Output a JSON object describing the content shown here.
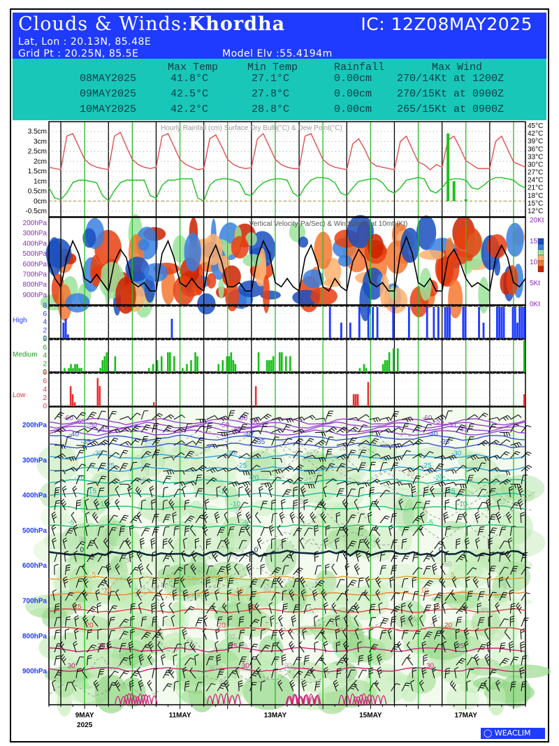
{
  "header": {
    "title_prefix": "Clouds & Winds:",
    "location": "Khordha",
    "ic": "IC: 12Z08MAY2025",
    "latlon": "Lat, Lon : 20.13N, 85.48E",
    "gridpt": "Grid Pt  : 20.25N, 85.5E",
    "model_elev": "Model Elv :55.4194m"
  },
  "summary": {
    "headers": [
      "Max Temp",
      "Min Temp",
      "Rainfall",
      "Max Wind"
    ],
    "rows": [
      {
        "date": "08MAY2025",
        "max_temp": "41.8°C",
        "min_temp": "27.1°C",
        "rainfall": "0.00cm",
        "max_wind": "270/14Kt at 1200Z"
      },
      {
        "date": "09MAY2025",
        "max_temp": "42.5°C",
        "min_temp": "27.8°C",
        "rainfall": "0.00cm",
        "max_wind": "270/15Kt at 0900Z"
      },
      {
        "date": "10MAY2025",
        "max_temp": "42.2°C",
        "min_temp": "28.8°C",
        "rainfall": "0.00cm",
        "max_wind": "265/15Kt at 0900Z"
      }
    ]
  },
  "footer": {
    "x_ticks": [
      "9MAY",
      "11MAY",
      "13MAY",
      "15MAY",
      "17MAY"
    ],
    "year": "2025",
    "brand": "WEACLIM"
  },
  "colors": {
    "header_bg": "#1f3bff",
    "summary_bg": "#18c7b8",
    "temp": "#e05050",
    "dew": "#20c020",
    "high": "#1f3bff",
    "medium": "#18c018",
    "low": "#e83030"
  },
  "chart_data": [
    {
      "type": "line",
      "title": "Hourly Rainfall (cm)   Surface Dry Bulb(°C)   & Dew Point(°C)",
      "left_axis_ticks": [
        "3.5cm",
        "3cm",
        "2.5cm",
        "2cm",
        "1.5cm",
        "1cm",
        "0.5cm",
        "0cm",
        "-0.5cm"
      ],
      "right_axis_ticks": [
        "45°C",
        "42°C",
        "39°C",
        "36°C",
        "33°C",
        "30°C",
        "27°C",
        "24°C",
        "21°C",
        "18°C",
        "15°C",
        "12°C"
      ],
      "x_hours": [
        0,
        3,
        6,
        9,
        12,
        15,
        18,
        21,
        24,
        27,
        30,
        33,
        36,
        39,
        42,
        45,
        48,
        51,
        54,
        57,
        60,
        63,
        66,
        69,
        72,
        75,
        78,
        81,
        84,
        87,
        90,
        93,
        96,
        99,
        102,
        105,
        108,
        111,
        114,
        117,
        120,
        123,
        126,
        129,
        132,
        135,
        138,
        141,
        144,
        147,
        150,
        153,
        156,
        159,
        162,
        165,
        168,
        171,
        174,
        177,
        180,
        183,
        186,
        189,
        192,
        195,
        198,
        201,
        204,
        207,
        210,
        213,
        216,
        219,
        222,
        225,
        228,
        231,
        234,
        237,
        240
      ],
      "series": [
        {
          "name": "Surface Dry Bulb(°C)",
          "unit": "C",
          "values": [
            29,
            28.5,
            28,
            41,
            42,
            37,
            32,
            30,
            29,
            28.5,
            28,
            41,
            42.5,
            37,
            32,
            30,
            29,
            28.5,
            29,
            41,
            42,
            37,
            32,
            30,
            29,
            28,
            28.5,
            40,
            41.5,
            37,
            32,
            30,
            29,
            28.5,
            28.8,
            40,
            42,
            37,
            32,
            30,
            29,
            28.5,
            28.5,
            41,
            42,
            37,
            32,
            30,
            29,
            28.5,
            28,
            38,
            40,
            36,
            31,
            29.5,
            29,
            28.5,
            28,
            39,
            41,
            36,
            31,
            30,
            28,
            30,
            29,
            39.5,
            41,
            36.5,
            31.5,
            30,
            28.5,
            28.5,
            28.5,
            39,
            41,
            36,
            31,
            30,
            29
          ]
        },
        {
          "name": "Dew Point(°C)",
          "unit": "C",
          "values": [
            21,
            17,
            16.5,
            19,
            23,
            24,
            24,
            23.5,
            23,
            18,
            16,
            20,
            23,
            24,
            24,
            24,
            24,
            18,
            17,
            22,
            24,
            24,
            24.5,
            24.5,
            24.5,
            17,
            16,
            22,
            24,
            24.5,
            24.5,
            24,
            23,
            18.5,
            18,
            21,
            23,
            24,
            24.5,
            24.5,
            24,
            19,
            17.5,
            21.5,
            24,
            25,
            25,
            24.5,
            23,
            19,
            18,
            21,
            23.5,
            24,
            24.5,
            24.5,
            23,
            20,
            19,
            21,
            24,
            24.5,
            25,
            24.5,
            20,
            19,
            21,
            24,
            24.5,
            24.5,
            24,
            21,
            20.5,
            22,
            24,
            25,
            25,
            24.5,
            24,
            22,
            21
          ]
        },
        {
          "name": "Hourly Rainfall (cm)",
          "unit": "cm",
          "bars": [
            {
              "x": 201,
              "value": 3.4
            },
            {
              "x": 204,
              "value": 1.0
            },
            {
              "x": 210,
              "value": 0.1
            }
          ]
        }
      ]
    },
    {
      "type": "heatmap",
      "title": "Vertical Velocity(Pa/Sec) & Windspeed at 10mtr(Kt)",
      "y_ticks": [
        "200hPa",
        "300hPa",
        "400hPa",
        "500hPa",
        "600hPa",
        "700hPa",
        "800hPa",
        "900hPa"
      ],
      "right_ticks": [
        "20Kt",
        "15Kt",
        "10Kt",
        "5Kt",
        "0Kt"
      ],
      "series": [
        {
          "name": "Windspeed at 10mtr(Kt)",
          "unit": "Kt",
          "values": [
            10,
            6,
            4,
            11,
            15,
            12,
            6,
            5,
            7,
            5,
            3,
            10,
            13,
            11,
            5,
            4,
            5,
            3,
            3,
            12,
            15,
            11,
            5,
            4,
            6,
            4,
            3,
            11,
            14,
            10,
            4,
            4,
            5,
            3,
            3,
            11,
            15,
            12,
            5,
            4,
            6,
            4,
            3,
            11,
            14,
            10,
            4,
            3,
            6,
            4,
            3,
            10,
            13,
            11,
            5,
            4,
            5,
            3,
            3,
            12,
            16,
            12,
            5,
            4,
            6,
            3,
            3,
            11,
            13,
            10,
            6,
            4,
            5,
            4,
            3,
            11,
            14,
            11,
            5,
            4,
            6
          ]
        }
      ]
    },
    {
      "type": "bar",
      "title": "High",
      "y_ticks": [
        "8",
        "6",
        "4",
        "2",
        "0"
      ],
      "series": [
        {
          "name": "High",
          "values": [
            0,
            0,
            0,
            0,
            0,
            0,
            4,
            5,
            1,
            0,
            0,
            0,
            0,
            0,
            0,
            0,
            0,
            0,
            0,
            0,
            0,
            0,
            0,
            0,
            0,
            0,
            0,
            0,
            0,
            0,
            0,
            0,
            0,
            0,
            0,
            0,
            0,
            0,
            0,
            0,
            0,
            0,
            0,
            0,
            0,
            0,
            0,
            0,
            0,
            0,
            0,
            0,
            0,
            0,
            5,
            0,
            0,
            0,
            0,
            0,
            0,
            0,
            0,
            0,
            0,
            0,
            0,
            0,
            0,
            0,
            0,
            0,
            0,
            0,
            0,
            0,
            0,
            0,
            0,
            0,
            0,
            0,
            0,
            0,
            0,
            0,
            0,
            0,
            0,
            0,
            0,
            0,
            0,
            0,
            0,
            0,
            0,
            0,
            0,
            0,
            0,
            0,
            0,
            0,
            0,
            0,
            0,
            0,
            0,
            0,
            0,
            0,
            0,
            0,
            0,
            0,
            0,
            0,
            0,
            0,
            0,
            0,
            0,
            0,
            8,
            0,
            0,
            0,
            0,
            4,
            0,
            0,
            0,
            4,
            0,
            0,
            0,
            8,
            0,
            0,
            0,
            8,
            0,
            8,
            0,
            8,
            0,
            0,
            0,
            0,
            0,
            0,
            8,
            0,
            0,
            0,
            0,
            0,
            0,
            8,
            0,
            0,
            0,
            0,
            0,
            0,
            0,
            8,
            0,
            0,
            8,
            0,
            8,
            0,
            0,
            8,
            8,
            8,
            0,
            0,
            0,
            0,
            0,
            8,
            8,
            0,
            0,
            0,
            0,
            0,
            8,
            0,
            4,
            0,
            0,
            0,
            0,
            0,
            8,
            8,
            8,
            8,
            0,
            0,
            0,
            8,
            8,
            4,
            8,
            8,
            8
          ]
        }
      ]
    },
    {
      "type": "bar",
      "title": "Medium",
      "y_ticks": [
        "8",
        "6",
        "4",
        "2",
        "0"
      ],
      "series": [
        {
          "name": "Medium",
          "values": [
            0,
            0,
            0,
            0,
            0,
            0,
            0,
            1,
            0,
            1,
            2,
            1,
            2,
            2,
            1,
            1,
            0,
            0,
            0,
            0,
            0,
            0,
            0,
            0,
            1,
            3,
            4,
            5,
            0,
            0,
            0,
            4,
            0,
            0,
            0,
            0,
            0,
            0,
            0,
            0,
            0,
            0,
            0,
            0,
            0,
            0,
            0,
            1,
            0,
            2,
            0,
            3,
            0,
            4,
            0,
            0,
            5,
            5,
            0,
            4,
            0,
            0,
            0,
            1,
            0,
            2,
            0,
            3,
            0,
            5,
            4,
            0,
            0,
            0,
            0,
            0,
            0,
            0,
            0,
            0,
            2,
            0,
            3,
            0,
            4,
            4,
            5,
            3,
            2,
            0,
            0,
            0,
            0,
            0,
            0,
            0,
            0,
            0,
            0,
            5,
            0,
            0,
            0,
            3,
            3,
            3,
            4,
            0,
            0,
            5,
            5,
            0,
            4,
            0,
            4,
            0,
            0,
            0,
            0,
            0,
            0,
            0,
            0,
            0,
            0,
            0,
            0,
            0,
            0,
            0,
            0,
            0,
            0,
            0,
            0,
            0,
            0,
            0,
            0,
            0,
            0,
            0,
            0,
            0,
            0,
            0,
            0,
            1,
            0,
            2,
            1,
            0,
            0,
            0,
            0,
            0,
            0,
            0,
            2,
            3,
            3,
            5,
            0,
            6,
            0,
            6,
            0,
            0,
            0,
            0,
            0,
            0,
            0,
            0,
            0,
            0,
            0,
            0,
            0,
            0,
            0,
            0,
            0,
            0,
            0,
            0,
            0,
            0,
            0,
            0,
            0,
            0,
            0,
            0,
            0,
            0,
            0,
            0,
            0,
            0,
            0,
            0,
            0,
            0,
            0,
            0,
            0,
            0,
            0,
            0,
            0,
            0,
            0,
            0,
            0,
            0,
            0,
            0,
            0,
            0,
            0,
            0,
            0,
            0,
            0,
            8
          ]
        }
      ]
    },
    {
      "type": "bar",
      "title": "Low",
      "y_ticks": [
        "8",
        "6",
        "4",
        "2",
        "0"
      ],
      "series": [
        {
          "name": "Low",
          "values": [
            0,
            0,
            0,
            0,
            0,
            0,
            0,
            0,
            0,
            0,
            5,
            3,
            1,
            0,
            0,
            0,
            0,
            0,
            0,
            0,
            0,
            0,
            0,
            7,
            5,
            0,
            0,
            0,
            0,
            0,
            0,
            0,
            0,
            0,
            0,
            0,
            0,
            0,
            0,
            0,
            0,
            0,
            0,
            0,
            0,
            0,
            0,
            0,
            0,
            0,
            1,
            0,
            0,
            0,
            0,
            0,
            0,
            0,
            0,
            0,
            0,
            0,
            0,
            0,
            0,
            0,
            0,
            0,
            0,
            0,
            0,
            0,
            0,
            0,
            0,
            0,
            0,
            0,
            0,
            0,
            0,
            0,
            0,
            0,
            0,
            0,
            0,
            0,
            0,
            0,
            0,
            0,
            0,
            0,
            0,
            0,
            0,
            0,
            0,
            5,
            0,
            0,
            0,
            0,
            0,
            0,
            0,
            0,
            0,
            0,
            0,
            0,
            0,
            0,
            0,
            0,
            0,
            0,
            0,
            0,
            0,
            0,
            0,
            0,
            0,
            0,
            0,
            0,
            0,
            0,
            0,
            0,
            0,
            0,
            0,
            0,
            0,
            0,
            0,
            0,
            0,
            0,
            0,
            0,
            0,
            0,
            3,
            3,
            3,
            0,
            0,
            0,
            0,
            6,
            0,
            0,
            0,
            0,
            0,
            0,
            0,
            0,
            0,
            0,
            0,
            0,
            0,
            0,
            0,
            0,
            0,
            0,
            0,
            0,
            0,
            0,
            0,
            0,
            0,
            0,
            0,
            0,
            0,
            0,
            0,
            0,
            0,
            0,
            0,
            0,
            0,
            0,
            0,
            0,
            0,
            0,
            0,
            0,
            0,
            0,
            0,
            0,
            0,
            0,
            0,
            0,
            0,
            0,
            0,
            0,
            0,
            0,
            0,
            0,
            0,
            0,
            0,
            0,
            0,
            0,
            0,
            0,
            0,
            0,
            0,
            0,
            0,
            0,
            3
          ]
        }
      ]
    },
    {
      "type": "line",
      "title": "",
      "y_ticks": [
        "200hPa",
        "300hPa",
        "400hPa",
        "500hPa",
        "600hPa",
        "700hPa",
        "800hPa",
        "900hPa"
      ],
      "isotherm_labels": [
        "-60",
        "-55",
        "-50",
        "-45",
        "-40",
        "-35",
        "-30",
        "-25",
        "-20",
        "-15",
        "-10",
        "-5",
        "0",
        "5",
        "10",
        "15",
        "20",
        "25",
        "30"
      ],
      "rh_labels": [
        "10",
        "30",
        "50",
        "70",
        "90"
      ]
    }
  ]
}
